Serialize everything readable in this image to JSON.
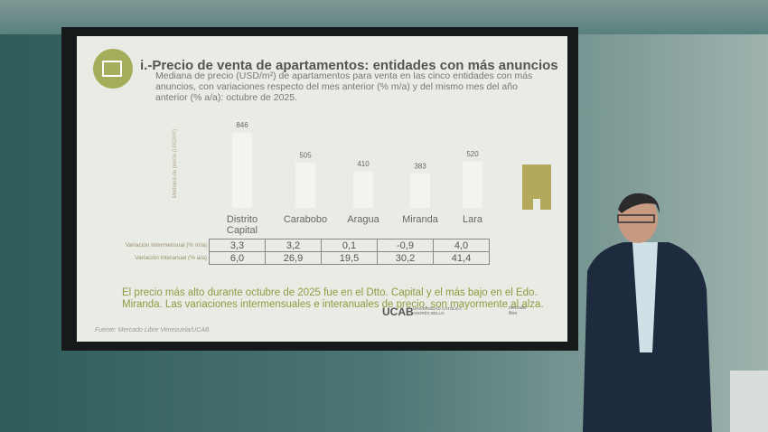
{
  "chart_data": {
    "type": "bar",
    "title": "i.-Precio de venta de apartamentos: entidades con más anuncios",
    "subtitle": "Mediana de precio (USD/m²) de apartamentos para venta en las cinco entidades con más anuncios, con variaciones respecto del mes anterior (% m/a) y del mismo mes del año anterior (% a/a): octubre de 2025.",
    "y_label": "Mediana de precio (USD/m²)",
    "categories": [
      "Distrito Capital",
      "Carabobo",
      "Aragua",
      "Miranda",
      "Lara"
    ],
    "values": [
      846,
      505,
      410,
      383,
      520
    ],
    "color": "#f4f4ee",
    "ylim": [
      0,
      1000
    ]
  },
  "table": {
    "row_labels": [
      "Variación intermensual (% m/a)",
      "Variación interanual (% a/a)"
    ],
    "rows": [
      [
        "3,3",
        "3,2",
        "0,1",
        "-0,9",
        "4,0"
      ],
      [
        "6,0",
        "26,9",
        "19,5",
        "30,2",
        "41,4"
      ]
    ]
  },
  "conclusion": "El precio más alto durante octubre de 2025 fue en el Dtto. Capital y el más bajo en el Edo. Miranda. Las variaciones intermensuales e interanuales de precio, son mayormente al alza.",
  "logos": {
    "ucab": "UCAB",
    "ucab_name": "UNIVERSIDAD CATÓLICA ANDRÉS BELLO",
    "meli": "mercado libre"
  },
  "source": "Fuente: Mercado Libre Venezuela/UCAB"
}
